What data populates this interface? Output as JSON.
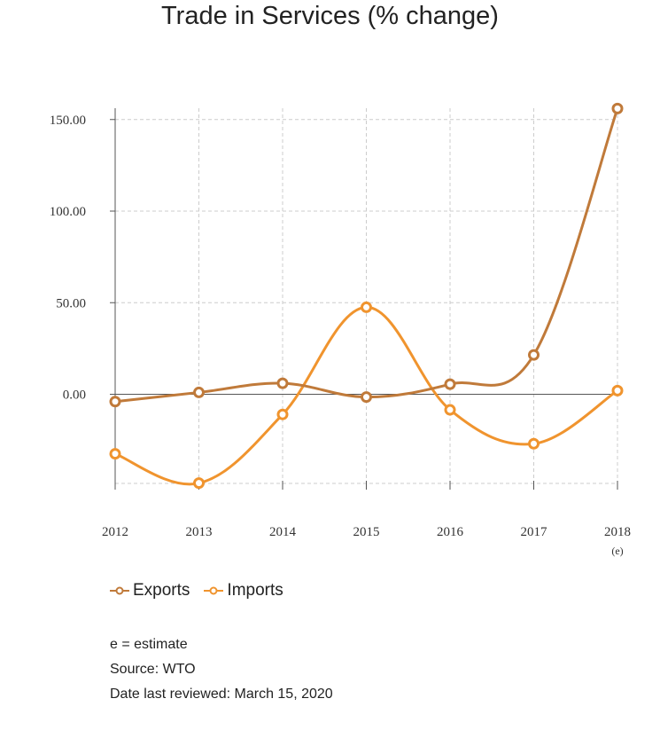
{
  "chart_data": {
    "type": "line",
    "title": "Trade in Services (% change)",
    "categories": [
      "2012",
      "2013",
      "2014",
      "2015",
      "2016",
      "2017",
      "2018"
    ],
    "category_notes": [
      "",
      "",
      "",
      "",
      "",
      "",
      "(e)"
    ],
    "y_ticks": [
      "150.00",
      "100.00",
      "50.00",
      "0.00"
    ],
    "ylim": [
      -50,
      160
    ],
    "grid": true,
    "legend_position": "bottom-left",
    "series": [
      {
        "name": "Exports",
        "color": "#c07a3a",
        "values": [
          -4,
          1,
          6,
          -1.5,
          5.5,
          21.5,
          156
        ]
      },
      {
        "name": "Imports",
        "color": "#f0942e",
        "values": [
          -32.5,
          -48.5,
          -11,
          47.5,
          -8.5,
          -27,
          2
        ]
      }
    ]
  },
  "notes": {
    "estimate": "e = estimate",
    "source": "Source: WTO",
    "reviewed": "Date last reviewed: March 15, 2020"
  }
}
